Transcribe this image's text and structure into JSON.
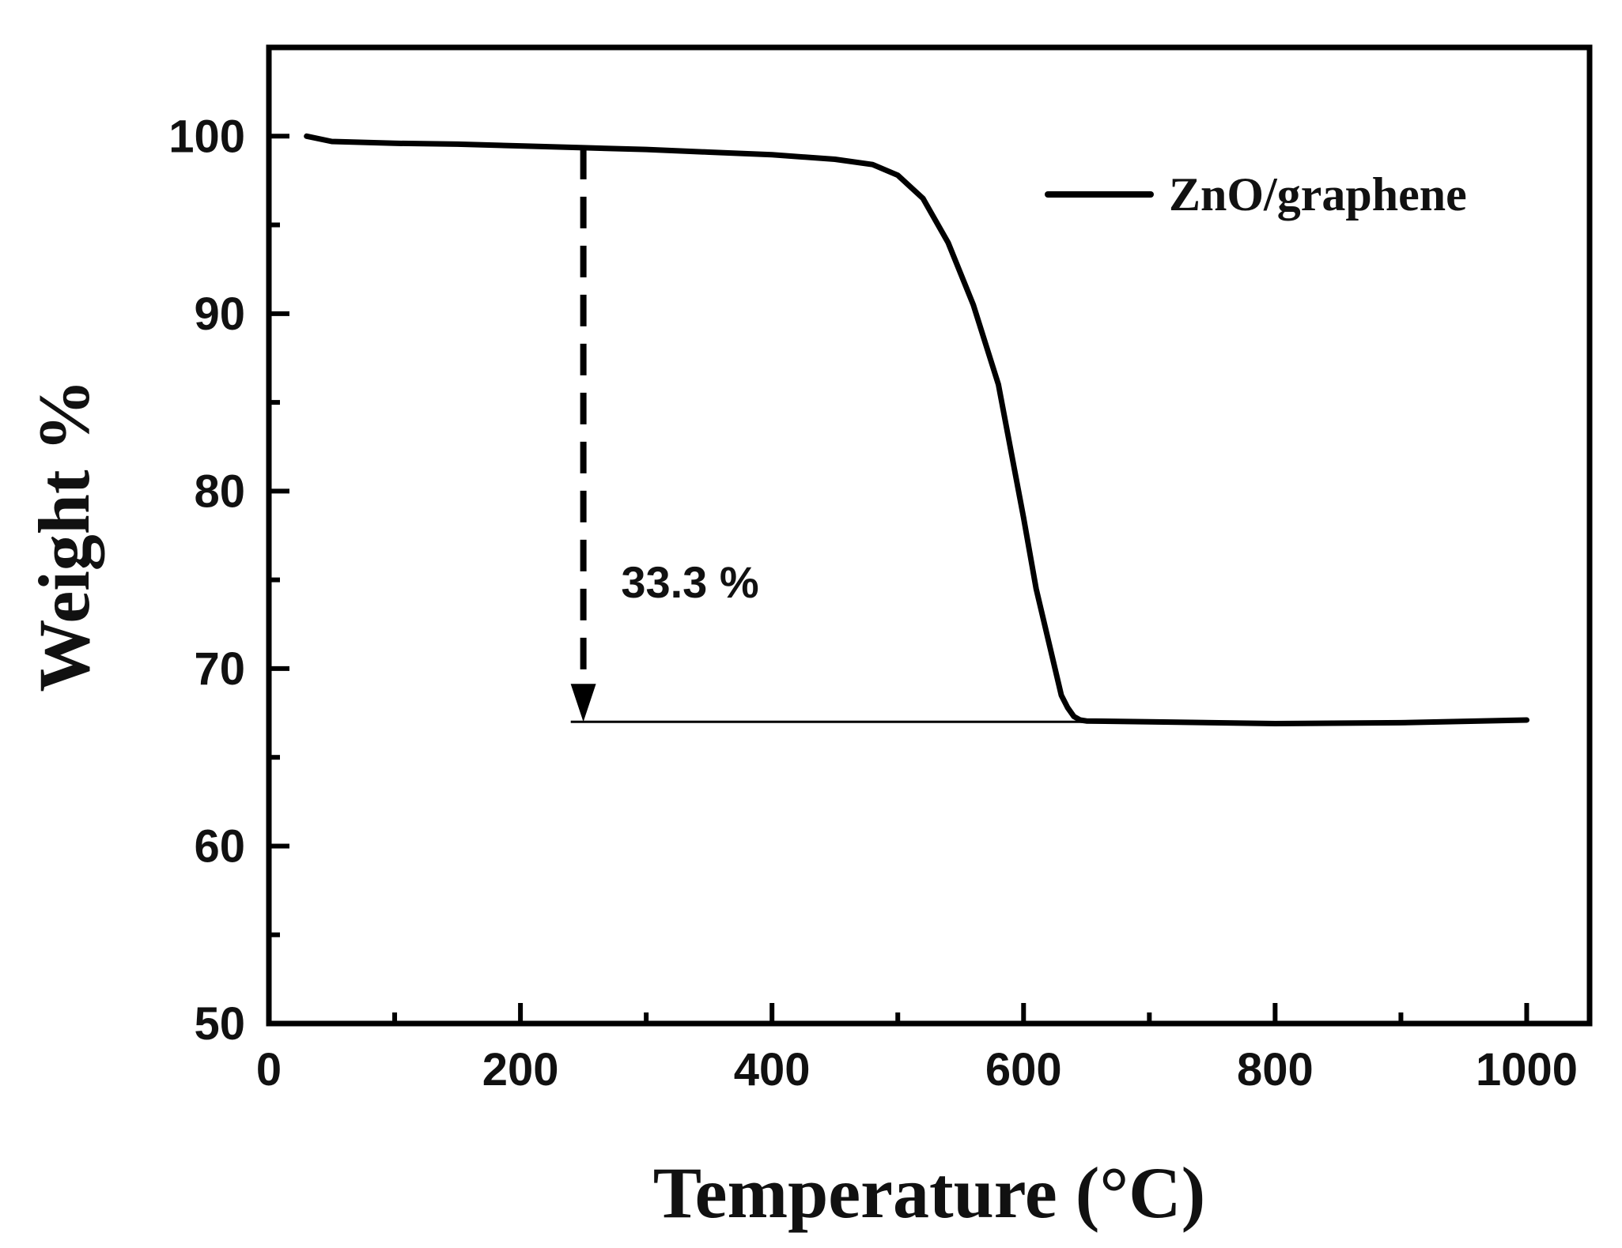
{
  "chart_data": {
    "type": "line",
    "title": "",
    "xlabel": "Temperature (°C)",
    "ylabel": "Weight %",
    "xlim": [
      0,
      1050
    ],
    "ylim": [
      50,
      105
    ],
    "xticks": [
      0,
      200,
      400,
      600,
      800,
      1000
    ],
    "xtick_labels": [
      "0",
      "200",
      "400",
      "600",
      "800",
      "1000"
    ],
    "xminor": [
      100,
      300,
      500,
      700,
      900
    ],
    "yticks": [
      50,
      60,
      70,
      80,
      90,
      100
    ],
    "ytick_labels": [
      "50",
      "60",
      "70",
      "80",
      "90",
      "100"
    ],
    "yminor": [
      55,
      65,
      75,
      85,
      95
    ],
    "grid": false,
    "legend_position": "top-right",
    "series": [
      {
        "name": "ZnO/graphene",
        "color": "#000000",
        "x": [
          30,
          50,
          100,
          150,
          200,
          250,
          300,
          350,
          400,
          450,
          480,
          500,
          520,
          540,
          560,
          580,
          600,
          610,
          620,
          630,
          635,
          640,
          645,
          650,
          700,
          800,
          900,
          1000
        ],
        "y": [
          100,
          99.7,
          99.6,
          99.55,
          99.45,
          99.35,
          99.25,
          99.1,
          98.95,
          98.7,
          98.4,
          97.8,
          96.5,
          94.0,
          90.5,
          86.0,
          78.5,
          74.5,
          71.5,
          68.5,
          67.8,
          67.3,
          67.1,
          67.05,
          67.0,
          66.9,
          66.95,
          67.1
        ]
      }
    ],
    "annotations": [
      {
        "text": "33.3 %",
        "x": 280,
        "y": 74,
        "arrow_from": [
          250,
          99.35
        ],
        "arrow_to": [
          250,
          67.0
        ],
        "reference_line": {
          "x_start": 240,
          "x_end": 650,
          "y": 67.0
        }
      }
    ]
  }
}
